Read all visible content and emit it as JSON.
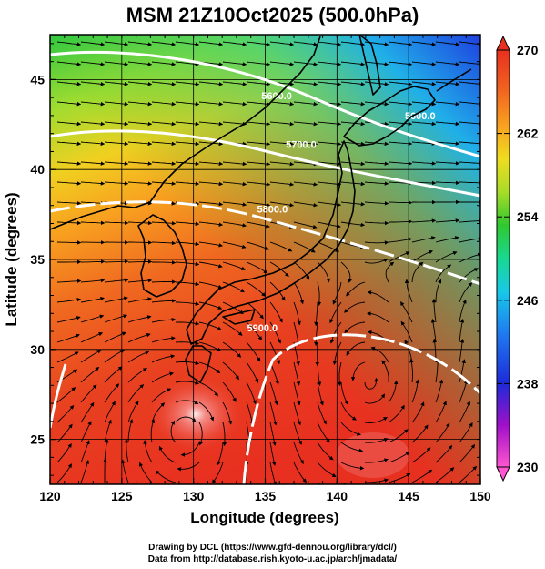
{
  "title": "MSM 21Z10Oct2025 (500.0hPa)",
  "x_axis": {
    "label": "Longitude (degrees)",
    "range": [
      120,
      150
    ],
    "ticks": [
      "120",
      "125",
      "130",
      "135",
      "140",
      "145",
      "150"
    ]
  },
  "y_axis": {
    "label": "Latitude  (degrees)",
    "range": [
      22.5,
      47.5
    ],
    "ticks": [
      "25",
      "30",
      "35",
      "40",
      "45"
    ]
  },
  "colorbar": {
    "range": [
      230,
      270
    ],
    "ticks": [
      "230",
      "238",
      "246",
      "254",
      "262",
      "270"
    ],
    "colors": [
      "#ff55d0",
      "#a010c8",
      "#1e2ad8",
      "#1f7af0",
      "#18c8e8",
      "#18d890",
      "#30c830",
      "#a8dc28",
      "#f0dc20",
      "#f8a020",
      "#f06020",
      "#e83020"
    ]
  },
  "contours": [
    {
      "label": "5600.0",
      "lon": 135.8,
      "lat": 43.9
    },
    {
      "label": "5600.0",
      "lon": 145.8,
      "lat": 42.8
    },
    {
      "label": "5700.0",
      "lon": 137.5,
      "lat": 41.2
    },
    {
      "label": "5800.0",
      "lon": 135.5,
      "lat": 37.6
    },
    {
      "label": "5900.0",
      "lon": 134.8,
      "lat": 31.0
    }
  ],
  "map_layers": {
    "temperature_field": "temperature-field",
    "streamlines": "wind-streamlines",
    "coastlines": "coastline-japan-korea",
    "grid": true
  },
  "credits": {
    "line1": "Drawing by DCL (https://www.gfd-dennou.org/library/dcl/)",
    "line2": "Data from http://database.rish.kyoto-u.ac.jp/arch/jmadata/"
  }
}
